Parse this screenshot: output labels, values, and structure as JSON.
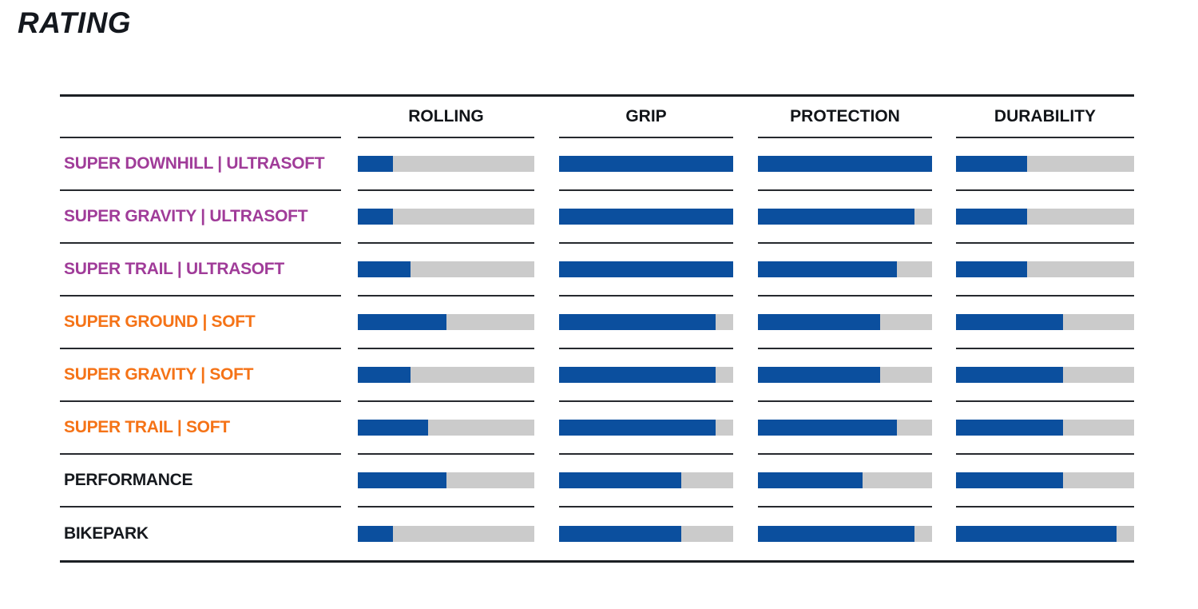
{
  "page": {
    "title": "RATING"
  },
  "colors": {
    "bar_fill": "#0b4f9e",
    "bar_track": "#cbcbcb",
    "ultrasoft_label": "#a03c99",
    "soft_label": "#f57317",
    "standard_label": "#16191e",
    "rule": "#1c1f24"
  },
  "chart_data": {
    "type": "bar",
    "title": "RATING",
    "subtitle": "",
    "scale": {
      "min": 0,
      "max": 5,
      "note": "horizontal fill bars, fraction of track filled"
    },
    "columns": [
      "ROLLING",
      "GRIP",
      "PROTECTION",
      "DURABILITY"
    ],
    "rows": [
      {
        "label": "SUPER DOWNHILL | ULTRASOFT",
        "label_color": "#a03c99",
        "values": [
          1,
          5,
          5,
          2
        ],
        "values_pct": [
          20,
          100,
          100,
          40
        ]
      },
      {
        "label": "SUPER GRAVITY | ULTRASOFT",
        "label_color": "#a03c99",
        "values": [
          1,
          5,
          4.5,
          2
        ],
        "values_pct": [
          20,
          100,
          90,
          40
        ]
      },
      {
        "label": "SUPER TRAIL | ULTRASOFT",
        "label_color": "#a03c99",
        "values": [
          1.5,
          5,
          4,
          2
        ],
        "values_pct": [
          30,
          100,
          80,
          40
        ]
      },
      {
        "label": "SUPER GROUND | SOFT",
        "label_color": "#f57317",
        "values": [
          2.5,
          4.5,
          3.5,
          3
        ],
        "values_pct": [
          50,
          90,
          70,
          60
        ]
      },
      {
        "label": "SUPER GRAVITY | SOFT",
        "label_color": "#f57317",
        "values": [
          1.5,
          4.5,
          3.5,
          3
        ],
        "values_pct": [
          30,
          90,
          70,
          60
        ]
      },
      {
        "label": "SUPER TRAIL | SOFT",
        "label_color": "#f57317",
        "values": [
          2,
          4.5,
          4,
          3
        ],
        "values_pct": [
          40,
          90,
          80,
          60
        ]
      },
      {
        "label": "PERFORMANCE",
        "label_color": "#16191e",
        "values": [
          2.5,
          3.5,
          3,
          3
        ],
        "values_pct": [
          50,
          70,
          60,
          60
        ]
      },
      {
        "label": "BIKEPARK",
        "label_color": "#16191e",
        "values": [
          1,
          3.5,
          4.5,
          4.5
        ],
        "values_pct": [
          20,
          70,
          90,
          90
        ]
      }
    ]
  }
}
